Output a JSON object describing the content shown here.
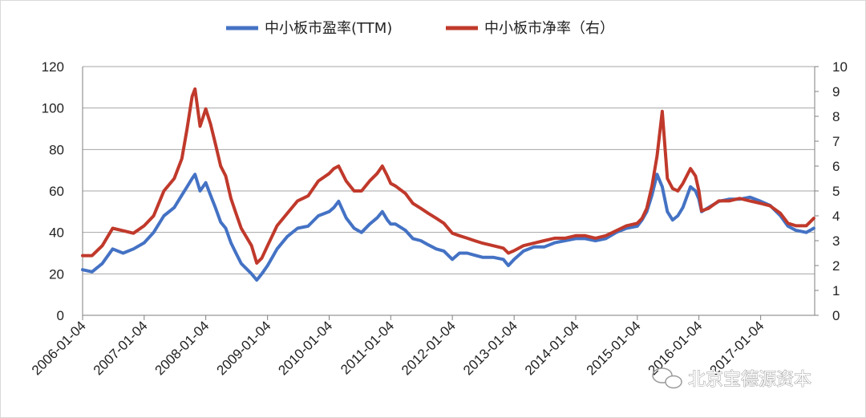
{
  "chart_data": {
    "type": "line",
    "title": "",
    "legend": {
      "placement": "top-center"
    },
    "grid": true,
    "x_tick_labels": [
      "2006-01-04",
      "2007-01-04",
      "2008-01-04",
      "2009-01-04",
      "2010-01-04",
      "2011-01-04",
      "2012-01-04",
      "2013-01-04",
      "2014-01-04",
      "2015-01-04",
      "2016-01-04",
      "2017-01-04"
    ],
    "left_axis": {
      "min": 0,
      "max": 120,
      "ticks": [
        0,
        20,
        40,
        60,
        80,
        100,
        120
      ]
    },
    "right_axis": {
      "min": 0,
      "max": 10,
      "ticks": [
        0,
        1,
        2,
        3,
        4,
        5,
        6,
        7,
        8,
        9,
        10
      ]
    },
    "series": [
      {
        "name": "中小板市盈率(TTM)",
        "axis": "left",
        "color": "#4472c4",
        "points": [
          [
            "2006-01-04",
            22
          ],
          [
            "2006-03-01",
            21
          ],
          [
            "2006-05-01",
            25
          ],
          [
            "2006-07-01",
            32
          ],
          [
            "2006-09-01",
            30
          ],
          [
            "2006-11-01",
            32
          ],
          [
            "2007-01-04",
            35
          ],
          [
            "2007-03-01",
            40
          ],
          [
            "2007-05-01",
            48
          ],
          [
            "2007-07-01",
            52
          ],
          [
            "2007-08-15",
            58
          ],
          [
            "2007-09-15",
            62
          ],
          [
            "2007-10-15",
            66
          ],
          [
            "2007-11-01",
            68
          ],
          [
            "2007-12-01",
            60
          ],
          [
            "2008-01-04",
            64
          ],
          [
            "2008-02-01",
            58
          ],
          [
            "2008-03-01",
            52
          ],
          [
            "2008-04-01",
            45
          ],
          [
            "2008-05-01",
            42
          ],
          [
            "2008-06-01",
            35
          ],
          [
            "2008-07-01",
            30
          ],
          [
            "2008-08-01",
            25
          ],
          [
            "2008-10-01",
            20
          ],
          [
            "2008-11-01",
            17
          ],
          [
            "2008-12-01",
            20
          ],
          [
            "2009-01-04",
            24
          ],
          [
            "2009-02-01",
            28
          ],
          [
            "2009-03-01",
            32
          ],
          [
            "2009-05-01",
            38
          ],
          [
            "2009-07-01",
            42
          ],
          [
            "2009-09-01",
            43
          ],
          [
            "2009-11-01",
            48
          ],
          [
            "2010-01-04",
            50
          ],
          [
            "2010-02-01",
            52
          ],
          [
            "2010-03-01",
            55
          ],
          [
            "2010-04-15",
            47
          ],
          [
            "2010-06-01",
            42
          ],
          [
            "2010-07-15",
            40
          ],
          [
            "2010-09-01",
            44
          ],
          [
            "2010-10-15",
            47
          ],
          [
            "2010-11-15",
            50
          ],
          [
            "2010-12-15",
            46
          ],
          [
            "2011-01-04",
            44
          ],
          [
            "2011-02-01",
            44
          ],
          [
            "2011-04-01",
            41
          ],
          [
            "2011-05-15",
            37
          ],
          [
            "2011-07-01",
            36
          ],
          [
            "2011-08-15",
            34
          ],
          [
            "2011-10-01",
            32
          ],
          [
            "2011-11-15",
            31
          ],
          [
            "2012-01-04",
            27
          ],
          [
            "2012-02-15",
            30
          ],
          [
            "2012-04-01",
            30
          ],
          [
            "2012-05-15",
            29
          ],
          [
            "2012-07-01",
            28
          ],
          [
            "2012-09-01",
            28
          ],
          [
            "2012-11-01",
            27
          ],
          [
            "2012-12-01",
            24
          ],
          [
            "2013-01-04",
            27
          ],
          [
            "2013-03-01",
            31
          ],
          [
            "2013-05-01",
            33
          ],
          [
            "2013-07-01",
            33
          ],
          [
            "2013-09-01",
            35
          ],
          [
            "2013-11-01",
            36
          ],
          [
            "2014-01-04",
            37
          ],
          [
            "2014-03-01",
            37
          ],
          [
            "2014-05-01",
            36
          ],
          [
            "2014-07-01",
            37
          ],
          [
            "2014-09-01",
            40
          ],
          [
            "2014-11-01",
            42
          ],
          [
            "2015-01-04",
            43
          ],
          [
            "2015-02-01",
            46
          ],
          [
            "2015-03-01",
            50
          ],
          [
            "2015-04-01",
            58
          ],
          [
            "2015-05-01",
            68
          ],
          [
            "2015-06-01",
            62
          ],
          [
            "2015-07-01",
            50
          ],
          [
            "2015-08-01",
            46
          ],
          [
            "2015-09-01",
            48
          ],
          [
            "2015-10-01",
            52
          ],
          [
            "2015-11-15",
            62
          ],
          [
            "2015-12-15",
            60
          ],
          [
            "2016-01-04",
            56
          ],
          [
            "2016-01-20",
            50
          ],
          [
            "2016-03-01",
            52
          ],
          [
            "2016-05-01",
            55
          ],
          [
            "2016-07-01",
            56
          ],
          [
            "2016-09-01",
            56
          ],
          [
            "2016-11-01",
            57
          ],
          [
            "2017-01-04",
            55
          ],
          [
            "2017-03-01",
            53
          ],
          [
            "2017-05-01",
            48
          ],
          [
            "2017-06-15",
            43
          ],
          [
            "2017-08-01",
            41
          ],
          [
            "2017-10-01",
            40
          ],
          [
            "2017-11-15",
            42
          ]
        ]
      },
      {
        "name": "中小板市净率（右）",
        "axis": "right",
        "color": "#c0392b",
        "points": [
          [
            "2006-01-04",
            2.4
          ],
          [
            "2006-03-01",
            2.4
          ],
          [
            "2006-05-01",
            2.8
          ],
          [
            "2006-07-01",
            3.5
          ],
          [
            "2006-09-01",
            3.4
          ],
          [
            "2006-11-01",
            3.3
          ],
          [
            "2007-01-04",
            3.6
          ],
          [
            "2007-03-01",
            4.0
          ],
          [
            "2007-05-01",
            5.0
          ],
          [
            "2007-07-01",
            5.5
          ],
          [
            "2007-08-15",
            6.3
          ],
          [
            "2007-09-15",
            7.5
          ],
          [
            "2007-10-15",
            8.8
          ],
          [
            "2007-11-01",
            9.1
          ],
          [
            "2007-12-01",
            7.6
          ],
          [
            "2008-01-04",
            8.3
          ],
          [
            "2008-02-01",
            7.7
          ],
          [
            "2008-03-01",
            6.9
          ],
          [
            "2008-04-01",
            6.0
          ],
          [
            "2008-05-01",
            5.6
          ],
          [
            "2008-06-01",
            4.7
          ],
          [
            "2008-07-01",
            4.1
          ],
          [
            "2008-08-01",
            3.5
          ],
          [
            "2008-10-01",
            2.8
          ],
          [
            "2008-11-01",
            2.1
          ],
          [
            "2008-12-01",
            2.3
          ],
          [
            "2009-01-04",
            2.8
          ],
          [
            "2009-02-01",
            3.2
          ],
          [
            "2009-03-01",
            3.6
          ],
          [
            "2009-05-01",
            4.1
          ],
          [
            "2009-07-01",
            4.6
          ],
          [
            "2009-09-01",
            4.8
          ],
          [
            "2009-11-01",
            5.4
          ],
          [
            "2010-01-04",
            5.7
          ],
          [
            "2010-02-01",
            5.9
          ],
          [
            "2010-03-01",
            6.0
          ],
          [
            "2010-04-15",
            5.4
          ],
          [
            "2010-06-01",
            5.0
          ],
          [
            "2010-07-15",
            5.0
          ],
          [
            "2010-09-01",
            5.4
          ],
          [
            "2010-10-15",
            5.7
          ],
          [
            "2010-11-15",
            6.0
          ],
          [
            "2010-12-15",
            5.6
          ],
          [
            "2011-01-04",
            5.3
          ],
          [
            "2011-02-01",
            5.2
          ],
          [
            "2011-04-01",
            4.9
          ],
          [
            "2011-05-15",
            4.5
          ],
          [
            "2011-07-01",
            4.3
          ],
          [
            "2011-08-15",
            4.1
          ],
          [
            "2011-10-01",
            3.9
          ],
          [
            "2011-11-15",
            3.7
          ],
          [
            "2012-01-04",
            3.3
          ],
          [
            "2012-02-15",
            3.2
          ],
          [
            "2012-04-01",
            3.1
          ],
          [
            "2012-05-15",
            3.0
          ],
          [
            "2012-07-01",
            2.9
          ],
          [
            "2012-09-01",
            2.8
          ],
          [
            "2012-11-01",
            2.7
          ],
          [
            "2012-12-01",
            2.5
          ],
          [
            "2013-01-04",
            2.6
          ],
          [
            "2013-03-01",
            2.8
          ],
          [
            "2013-05-01",
            2.9
          ],
          [
            "2013-07-01",
            3.0
          ],
          [
            "2013-09-01",
            3.1
          ],
          [
            "2013-11-01",
            3.1
          ],
          [
            "2014-01-04",
            3.2
          ],
          [
            "2014-03-01",
            3.2
          ],
          [
            "2014-05-01",
            3.1
          ],
          [
            "2014-07-01",
            3.2
          ],
          [
            "2014-09-01",
            3.4
          ],
          [
            "2014-11-01",
            3.6
          ],
          [
            "2015-01-04",
            3.7
          ],
          [
            "2015-02-01",
            3.9
          ],
          [
            "2015-03-01",
            4.3
          ],
          [
            "2015-04-01",
            5.2
          ],
          [
            "2015-05-01",
            6.4
          ],
          [
            "2015-06-01",
            8.2
          ],
          [
            "2015-07-01",
            5.5
          ],
          [
            "2015-08-01",
            5.1
          ],
          [
            "2015-09-01",
            5.0
          ],
          [
            "2015-10-01",
            5.3
          ],
          [
            "2015-11-15",
            5.9
          ],
          [
            "2015-12-15",
            5.6
          ],
          [
            "2016-01-04",
            5.0
          ],
          [
            "2016-01-20",
            4.2
          ],
          [
            "2016-03-01",
            4.3
          ],
          [
            "2016-05-01",
            4.6
          ],
          [
            "2016-07-01",
            4.6
          ],
          [
            "2016-09-01",
            4.7
          ],
          [
            "2016-11-01",
            4.6
          ],
          [
            "2017-01-04",
            4.5
          ],
          [
            "2017-03-01",
            4.4
          ],
          [
            "2017-05-01",
            4.1
          ],
          [
            "2017-06-15",
            3.7
          ],
          [
            "2017-08-01",
            3.6
          ],
          [
            "2017-10-01",
            3.6
          ],
          [
            "2017-11-15",
            3.9
          ]
        ]
      }
    ]
  },
  "watermark": {
    "text": "北京宝德源资本"
  }
}
